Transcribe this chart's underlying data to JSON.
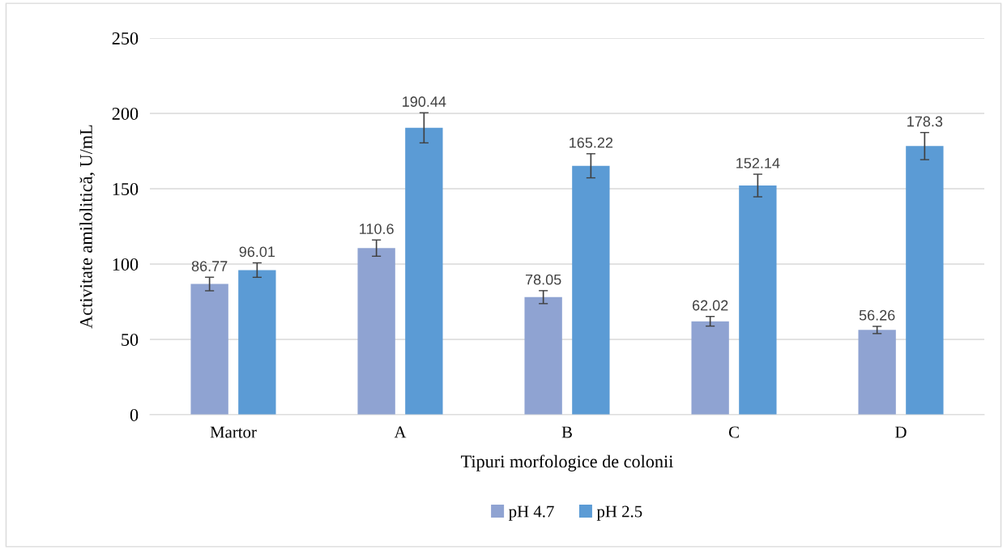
{
  "chart_data": {
    "type": "bar",
    "xlabel": "Tipuri morfologice de colonii",
    "ylabel": "Activitate amilolitică, U/mL",
    "categories": [
      "Martor",
      "A",
      "B",
      "C",
      "D"
    ],
    "series": [
      {
        "name": "pH 4.7",
        "color": "#8fa3d2",
        "values": [
          86.77,
          110.6,
          78.05,
          62.02,
          56.26
        ],
        "errors": [
          4.5,
          5.4,
          4.3,
          3.2,
          2.4
        ]
      },
      {
        "name": "pH 2.5",
        "color": "#5b9bd5",
        "values": [
          96.01,
          190.44,
          165.22,
          152.14,
          178.3
        ],
        "errors": [
          4.8,
          10,
          8,
          7.5,
          9
        ]
      }
    ],
    "ylim": [
      0,
      250
    ],
    "yticks": [
      0,
      50,
      100,
      150,
      200,
      250
    ],
    "grid": "y",
    "legend": "bottom",
    "data_labels": true
  }
}
